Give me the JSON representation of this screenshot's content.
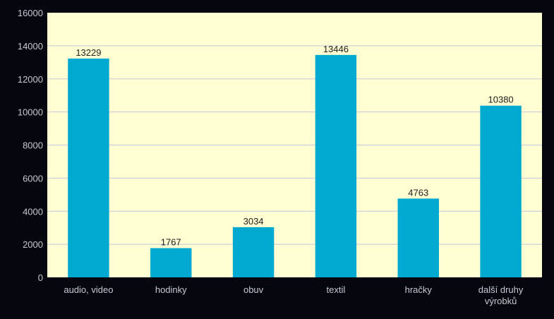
{
  "chart_data": {
    "type": "bar",
    "categories": [
      [
        "audio, video"
      ],
      [
        "hodinky"
      ],
      [
        "obuv"
      ],
      [
        "textil"
      ],
      [
        "hračky"
      ],
      [
        "další druhy",
        "výrobků"
      ]
    ],
    "values": [
      13229,
      1767,
      3034,
      13446,
      4763,
      10380
    ],
    "data_labels": [
      "13229",
      "1767",
      "3034",
      "13446",
      "4763",
      "10380"
    ],
    "ylim": [
      0,
      16000
    ],
    "yticks": [
      "0",
      "2000",
      "4000",
      "6000",
      "8000",
      "10000",
      "12000",
      "14000",
      "16000"
    ],
    "grid": true,
    "legend": "none",
    "colors": {
      "bar": "#00a9cf",
      "plot_background": "#fffdd2",
      "page_background": "#06060f",
      "gridline": "#c4c8dc",
      "axis_text": "#c8c8d2",
      "data_label_text": "#222222"
    }
  }
}
